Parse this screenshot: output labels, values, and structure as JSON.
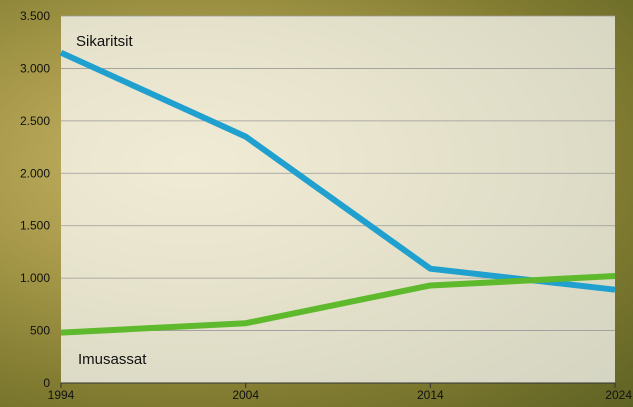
{
  "chart_data": {
    "type": "line",
    "x": [
      1994,
      2004,
      2014,
      2024
    ],
    "x_tick_labels": [
      "1994",
      "2004",
      "2014",
      "2024"
    ],
    "y_tick_labels": [
      "0",
      "500",
      "1.000",
      "1.500",
      "2.000",
      "2.500",
      "3.000",
      "3.500"
    ],
    "y_ticks": [
      0,
      500,
      1000,
      1500,
      2000,
      2500,
      3000,
      3500
    ],
    "ylim": [
      0,
      3500
    ],
    "xlim": [
      1994,
      2024
    ],
    "grid": true,
    "title": "",
    "xlabel": "",
    "ylabel": "",
    "series": [
      {
        "name": "Sikaritsit",
        "color": "#1fa0cf",
        "points": [
          [
            1994,
            3150
          ],
          [
            2004,
            2350
          ],
          [
            2014,
            1090
          ],
          [
            2024,
            890
          ]
        ]
      },
      {
        "name": "Imusassat",
        "color": "#5fb92c",
        "points": [
          [
            1994,
            480
          ],
          [
            2004,
            570
          ],
          [
            2014,
            930
          ],
          [
            2024,
            1020
          ]
        ]
      }
    ]
  }
}
